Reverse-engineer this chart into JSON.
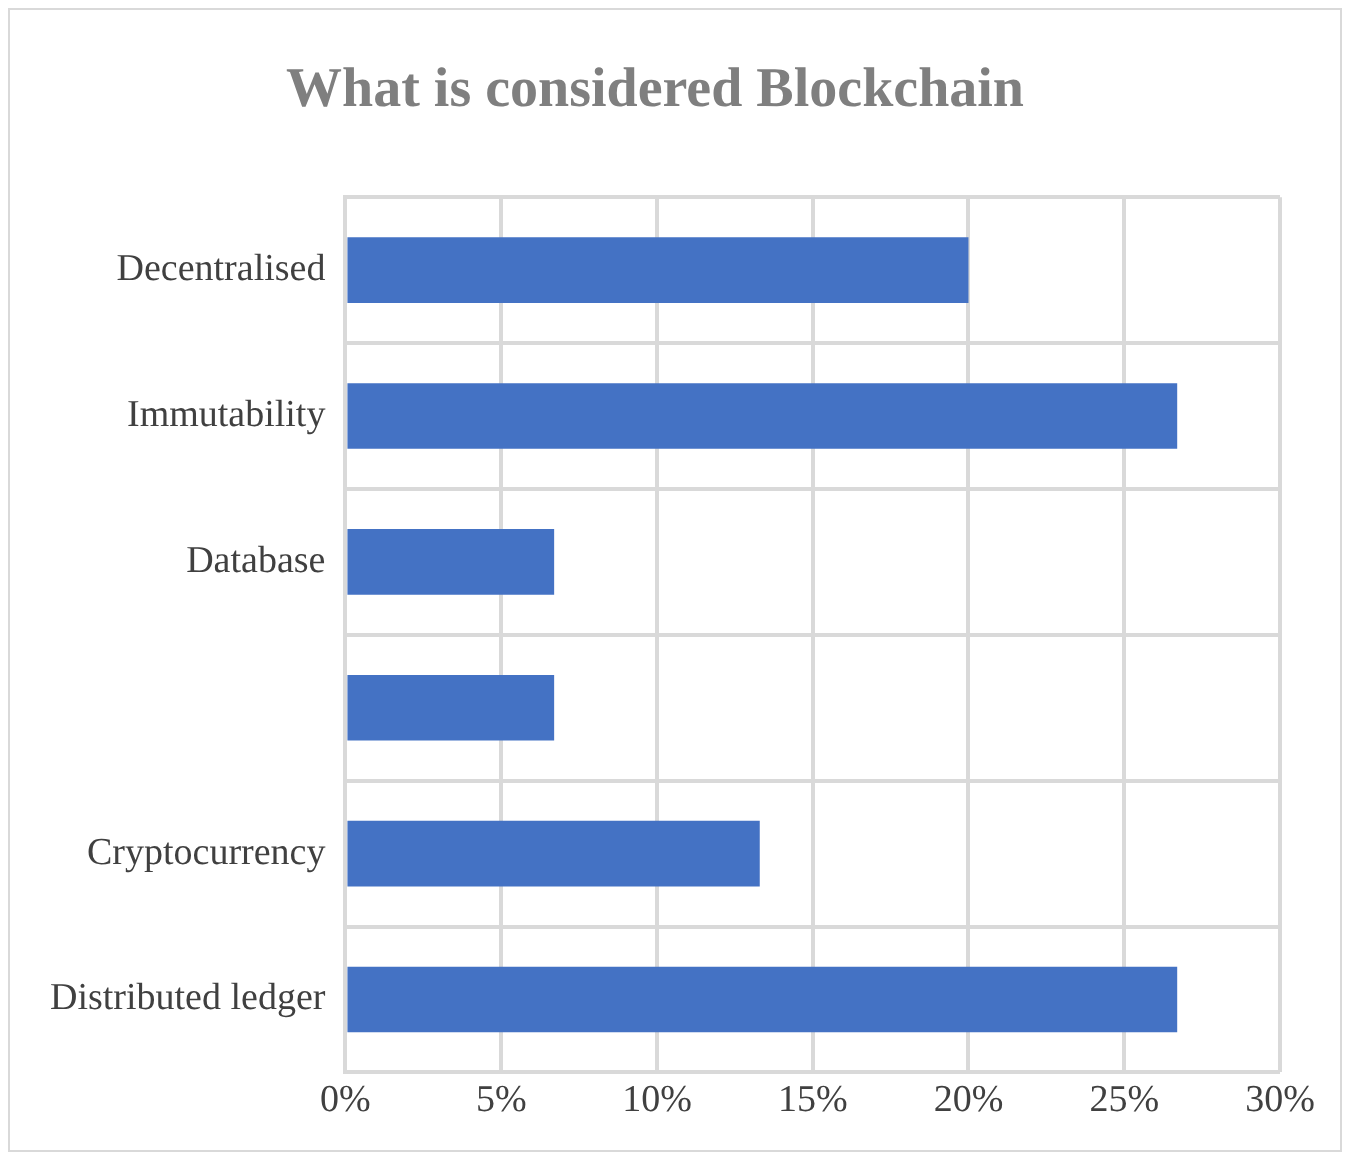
{
  "chart_data": {
    "type": "bar",
    "orientation": "horizontal",
    "title": "What is considered Blockchain",
    "categories": [
      "Decentralised",
      "Immutability",
      "Database",
      null,
      "Cryptocurrency",
      "Distributed ledger"
    ],
    "values": [
      20,
      26.7,
      6.7,
      6.7,
      13.3,
      26.7
    ],
    "color": "#4472c4",
    "xlim": [
      0,
      30
    ],
    "xticks": [
      {
        "value": 0,
        "label": "0%"
      },
      {
        "value": 5,
        "label": "5%"
      },
      {
        "value": 10,
        "label": "10%"
      },
      {
        "value": 15,
        "label": "15%"
      },
      {
        "value": 20,
        "label": "20%"
      },
      {
        "value": 25,
        "label": "25%"
      },
      {
        "value": 30,
        "label": "30%"
      }
    ],
    "grid": true
  }
}
